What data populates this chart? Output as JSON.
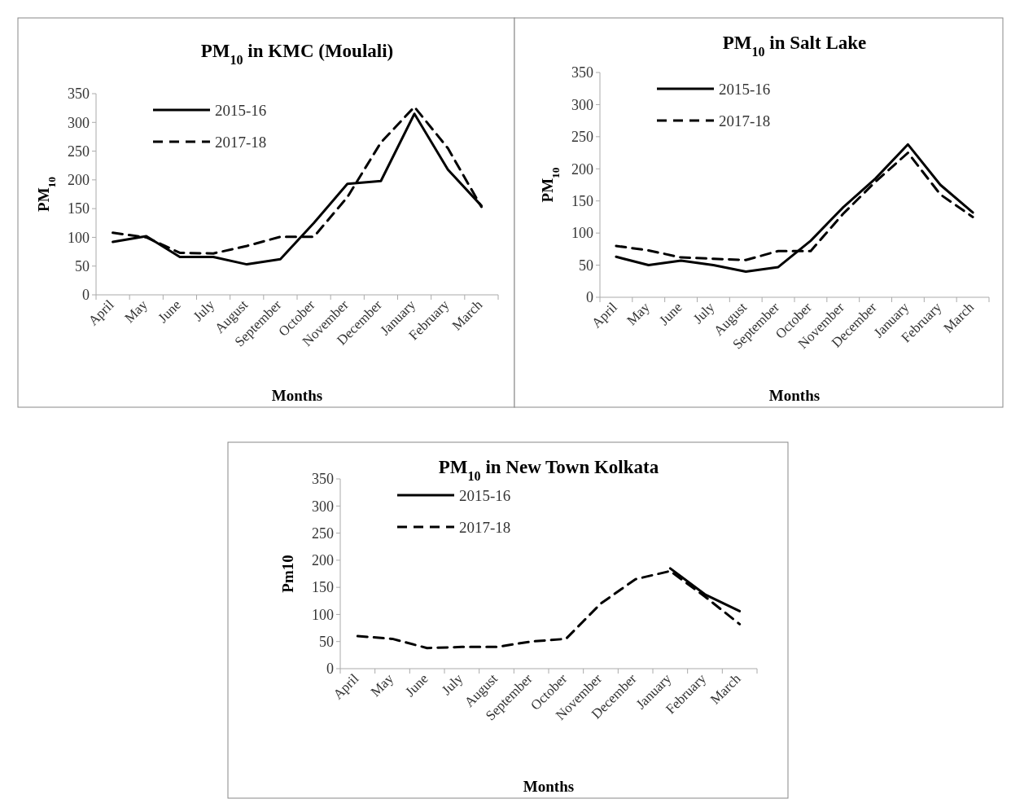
{
  "chart_data": [
    {
      "type": "line",
      "title": "PM$_{10}$ in KMC (Moulali)",
      "xlabel": "Months",
      "ylabel": "PM$_{10}$",
      "categories": [
        "April",
        "May",
        "June",
        "July",
        "August",
        "September",
        "October",
        "November",
        "December",
        "January",
        "February",
        "March"
      ],
      "ylim": [
        0,
        350
      ],
      "yticks": [
        0,
        50,
        100,
        150,
        200,
        250,
        300,
        350
      ],
      "legend": "top left",
      "grid": false,
      "series": [
        {
          "name": "2015-16",
          "color": "#000000",
          "line_style": "solid",
          "values": [
            92,
            102,
            66,
            66,
            53,
            62,
            125,
            193,
            198,
            315,
            218,
            155
          ]
        },
        {
          "name": "2017-18",
          "color": "#000000",
          "line_style": "dashed",
          "values": [
            108,
            100,
            73,
            72,
            85,
            101,
            101,
            170,
            265,
            327,
            255,
            153
          ]
        }
      ]
    },
    {
      "type": "line",
      "title": "PM$_{10}$ in Salt Lake",
      "xlabel": "Months",
      "ylabel": "PM$_{10}$",
      "categories": [
        "April",
        "May",
        "June",
        "July",
        "August",
        "September",
        "October",
        "November",
        "December",
        "January",
        "February",
        "March"
      ],
      "ylim": [
        0,
        350
      ],
      "yticks": [
        0,
        50,
        100,
        150,
        200,
        250,
        300,
        350
      ],
      "legend": "top left",
      "grid": false,
      "series": [
        {
          "name": "2015-16",
          "color": "#000000",
          "line_style": "solid",
          "values": [
            63,
            50,
            57,
            50,
            40,
            47,
            88,
            140,
            185,
            238,
            175,
            132
          ]
        },
        {
          "name": "2017-18",
          "color": "#000000",
          "line_style": "dashed",
          "values": [
            80,
            73,
            62,
            60,
            58,
            72,
            72,
            130,
            180,
            225,
            160,
            125
          ]
        }
      ]
    },
    {
      "type": "line",
      "title": "PM$_{10}$ in New Town Kolkata",
      "xlabel": "Months",
      "ylabel": "Pm10",
      "categories": [
        "April",
        "May",
        "June",
        "July",
        "August",
        "September",
        "October",
        "November",
        "December",
        "January",
        "February",
        "March"
      ],
      "ylim": [
        0,
        350
      ],
      "yticks": [
        0,
        50,
        100,
        150,
        200,
        250,
        300,
        350
      ],
      "legend": "top left",
      "grid": false,
      "series": [
        {
          "name": "2015-16",
          "color": "#000000",
          "line_style": "solid",
          "values": [
            null,
            null,
            null,
            null,
            null,
            null,
            null,
            null,
            null,
            185,
            137,
            106
          ]
        },
        {
          "name": "2017-18",
          "color": "#000000",
          "line_style": "dashed",
          "values": [
            60,
            55,
            38,
            40,
            40,
            50,
            55,
            120,
            165,
            180,
            133,
            82
          ]
        }
      ]
    }
  ]
}
